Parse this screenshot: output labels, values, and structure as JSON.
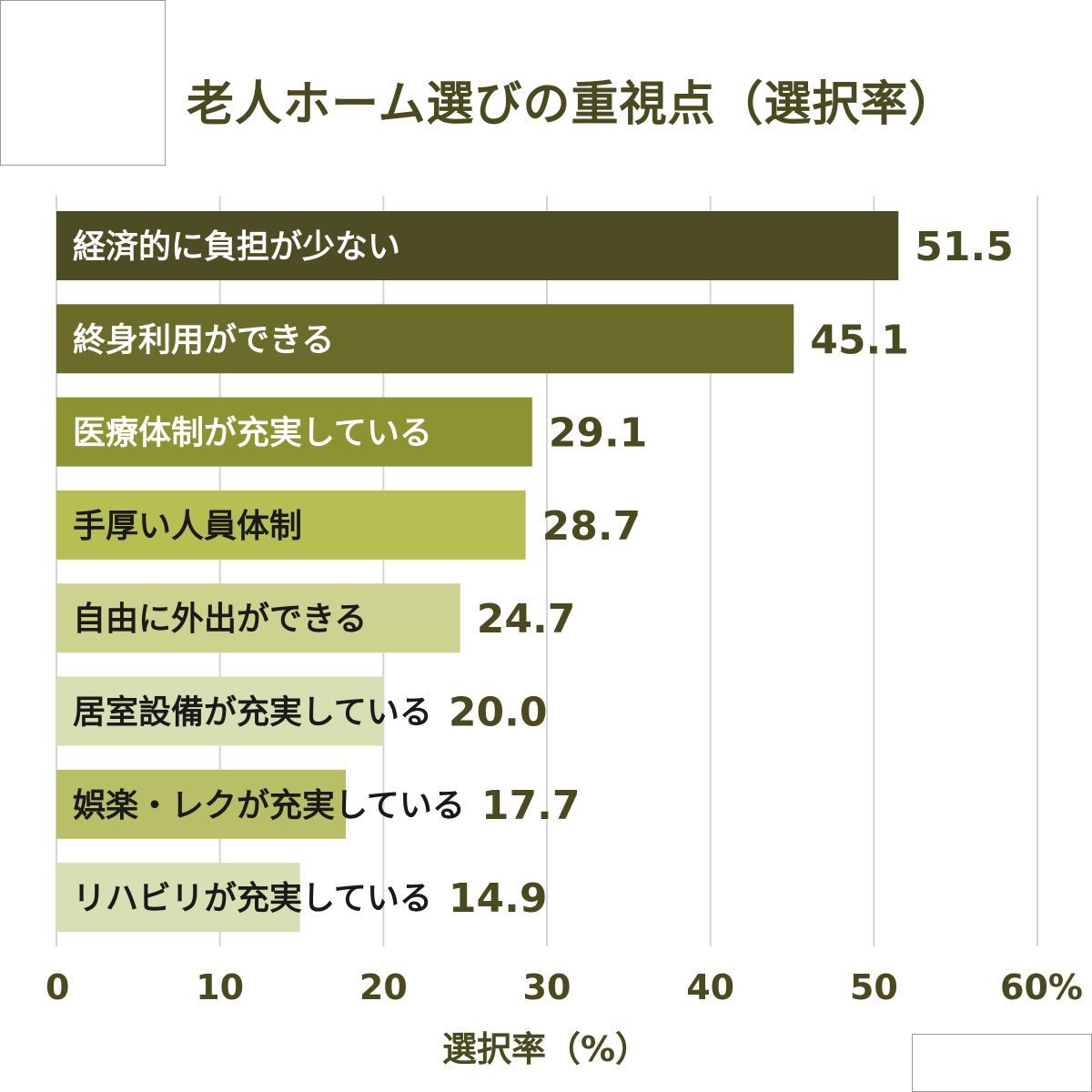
{
  "chart_data": {
    "type": "bar",
    "orientation": "horizontal",
    "title": "老人ホーム選びの重視点（選択率）",
    "xlabel": "選択率（%）",
    "ylabel": "",
    "xlim": [
      0,
      60
    ],
    "x_ticks": [
      "0",
      "10",
      "20",
      "30",
      "40",
      "50",
      "60%"
    ],
    "grid": true,
    "categories": [
      "経済的に負担が少ない",
      "終身利用ができる",
      "医療体制が充実している",
      "手厚い人員体制",
      "自由に外出ができる",
      "居室設備が充実している",
      "娯楽・レクが充実している",
      "リハビリが充実している"
    ],
    "values": [
      51.5,
      45.1,
      29.1,
      28.7,
      24.7,
      20.0,
      17.7,
      14.9
    ],
    "value_labels": [
      "51.5",
      "45.1",
      "29.1",
      "28.7",
      "24.7",
      "20.0",
      "17.7",
      "14.9"
    ],
    "bar_colors": [
      "#4d4c22",
      "#6b6b2a",
      "#8e9332",
      "#b8bf52",
      "#cdd38f",
      "#dadfb3",
      "#b8bf66",
      "#dadfb3"
    ],
    "label_colors": [
      "#ffffff",
      "#ffffff",
      "#ffffff",
      "#1a1a1a",
      "#1a1a1a",
      "#1a1a1a",
      "#1a1a1a",
      "#1a1a1a"
    ],
    "value_color": "#4b4a1f",
    "grid_color": "#d4d4d4"
  }
}
